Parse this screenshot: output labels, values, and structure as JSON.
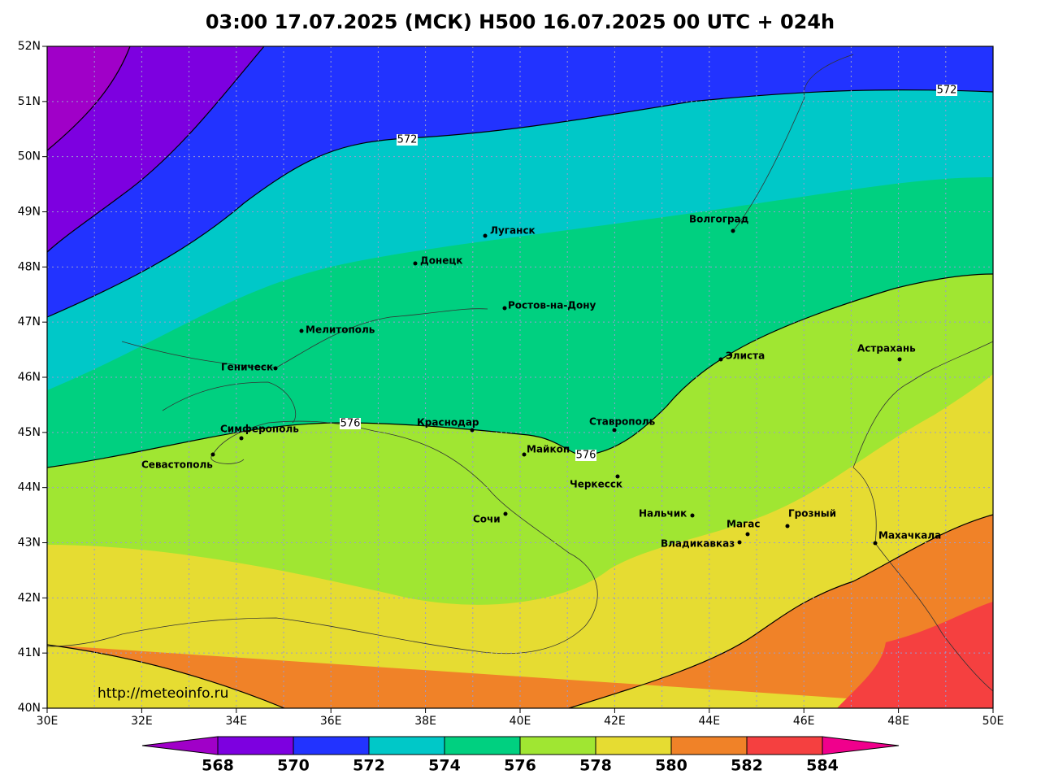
{
  "title": "03:00 17.07.2025 (МСК) H500  16.07.2025 00 UTC + 024h",
  "url": "http://meteoinfo.ru",
  "lat_labels": [
    "52N",
    "51N",
    "50N",
    "49N",
    "48N",
    "47N",
    "46N",
    "45N",
    "44N",
    "43N",
    "42N",
    "41N",
    "40N"
  ],
  "lon_labels": [
    "30E",
    "32E",
    "34E",
    "36E",
    "38E",
    "40E",
    "42E",
    "44E",
    "46E",
    "48E",
    "50E"
  ],
  "cities": [
    "Луганск",
    "Донецк",
    "Волгоград",
    "Ростов-на-Дону",
    "Мелитополь",
    "Геническ",
    "Элиста",
    "Астрахань",
    "Симферополь",
    "Севастополь",
    "Краснодар",
    "Майкоп",
    "Ставрополь",
    "Черкесск",
    "Нальчик",
    "Сочи",
    "Магас",
    "Владикавказ",
    "Грозный",
    "Махачкала"
  ],
  "contour_labels": [
    "572",
    "572",
    "576",
    "576"
  ],
  "colorbar_labels": [
    "568",
    "570",
    "572",
    "574",
    "576",
    "578",
    "580",
    "582",
    "584"
  ]
}
